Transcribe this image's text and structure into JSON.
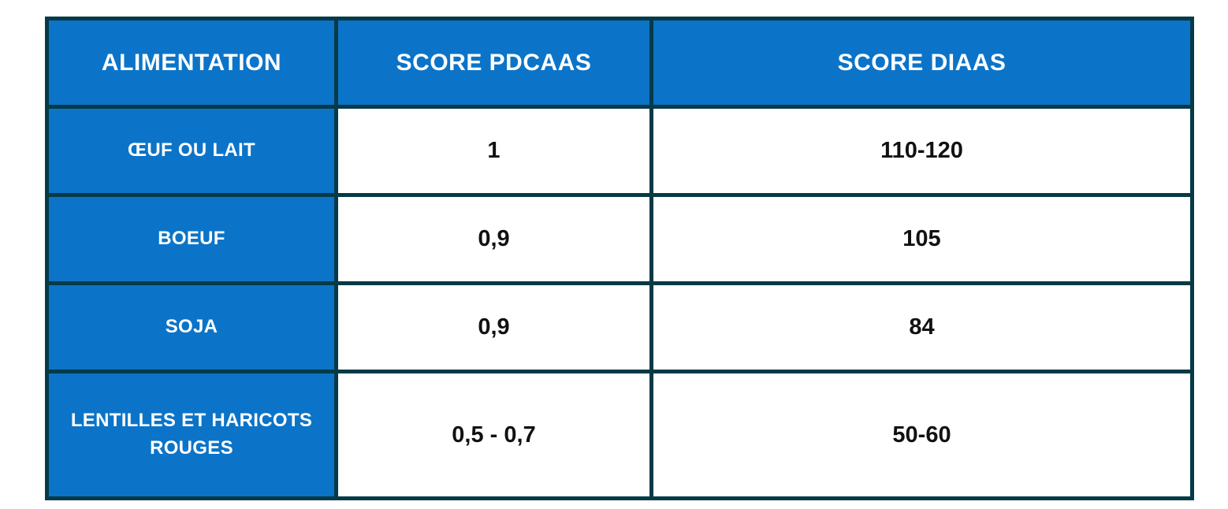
{
  "colors": {
    "cell_blue": "#0B74C8",
    "border_dark_teal": "#063A47",
    "header_text": "#FFFFFF",
    "value_text": "#111111",
    "page_background": "#FFFFFF"
  },
  "table": {
    "headers": {
      "food": "ALIMENTATION",
      "pdcaas": "SCORE PDCAAS",
      "diaas": "SCORE DIAAS"
    },
    "rows": [
      {
        "label": "ŒUF OU LAIT",
        "pdcaas": "1",
        "diaas": "110-120"
      },
      {
        "label": "BOEUF",
        "pdcaas": "0,9",
        "diaas": "105"
      },
      {
        "label": "SOJA",
        "pdcaas": "0,9",
        "diaas": "84"
      },
      {
        "label": "LENTILLES ET HARICOTS ROUGES",
        "pdcaas": "0,5 - 0,7",
        "diaas": "50-60"
      }
    ]
  },
  "chart_data": {
    "type": "table",
    "columns": [
      "ALIMENTATION",
      "SCORE PDCAAS",
      "SCORE DIAAS"
    ],
    "rows": [
      [
        "ŒUF OU LAIT",
        "1",
        "110-120"
      ],
      [
        "BOEUF",
        "0,9",
        "105"
      ],
      [
        "SOJA",
        "0,9",
        "84"
      ],
      [
        "LENTILLES ET HARICOTS ROUGES",
        "0,5 - 0,7",
        "50-60"
      ]
    ],
    "notes": "Comparison of protein quality scores (PDCAAS vs DIAAS) for foods; header row and first column have blue fill with white bold text, values are black bold on white, dark teal grid borders."
  }
}
